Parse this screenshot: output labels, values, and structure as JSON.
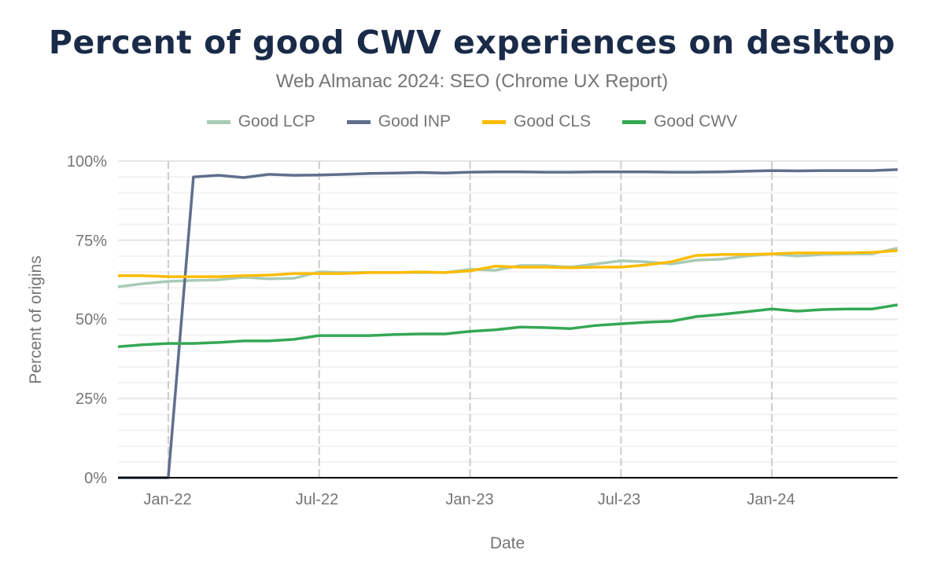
{
  "chart_data": {
    "type": "line",
    "title": "Percent of good CWV experiences on desktop",
    "subtitle": "Web Almanac 2024: SEO (Chrome UX Report)",
    "xlabel": "Date",
    "ylabel": "Percent of origins",
    "ylim": [
      0,
      100
    ],
    "y_ticks": [
      "0%",
      "25%",
      "50%",
      "75%",
      "100%"
    ],
    "x_ticks": [
      "Jan-22",
      "Jul-22",
      "Jan-23",
      "Jul-23",
      "Jan-24"
    ],
    "grid": true,
    "legend_position": "top",
    "x": [
      "2021-11",
      "2021-12",
      "2022-01",
      "2022-02",
      "2022-03",
      "2022-04",
      "2022-05",
      "2022-06",
      "2022-07",
      "2022-08",
      "2022-09",
      "2022-10",
      "2022-11",
      "2022-12",
      "2023-01",
      "2023-02",
      "2023-03",
      "2023-04",
      "2023-05",
      "2023-06",
      "2023-07",
      "2023-08",
      "2023-09",
      "2023-10",
      "2023-11",
      "2023-12",
      "2024-01",
      "2024-02",
      "2024-03",
      "2024-04",
      "2024-05",
      "2024-06"
    ],
    "series": [
      {
        "name": "Good LCP",
        "color": "#a8cbb5",
        "values": [
          60.3,
          61.3,
          62,
          62.3,
          62.5,
          63.3,
          62.8,
          63,
          65,
          64.8,
          64.8,
          64.8,
          64.8,
          64.8,
          65.8,
          65.5,
          67,
          67,
          66.5,
          67.5,
          68.5,
          68.2,
          67.5,
          68.7,
          69,
          70,
          70.7,
          70,
          70.5,
          70.7,
          70.7,
          72.5
        ]
      },
      {
        "name": "Good INP",
        "color": "#5f6f8c",
        "values": [
          0,
          0,
          0,
          95,
          95.5,
          94.8,
          95.8,
          95.5,
          95.6,
          95.8,
          96.1,
          96.2,
          96.4,
          96.2,
          96.5,
          96.6,
          96.6,
          96.5,
          96.5,
          96.6,
          96.6,
          96.6,
          96.5,
          96.5,
          96.6,
          96.8,
          97,
          96.9,
          97,
          97,
          97,
          97.3
        ]
      },
      {
        "name": "Good CLS",
        "color": "#fbbc04",
        "values": [
          63.8,
          63.8,
          63.5,
          63.5,
          63.5,
          63.8,
          64,
          64.5,
          64.5,
          64.5,
          64.8,
          64.8,
          65,
          64.8,
          65.3,
          66.8,
          66.5,
          66.5,
          66.3,
          66.5,
          66.5,
          67.2,
          68.2,
          70.2,
          70.5,
          70.5,
          70.7,
          71,
          71,
          71,
          71.2,
          71.7
        ]
      },
      {
        "name": "Good CWV",
        "color": "#34a853",
        "values": [
          41.4,
          42,
          42.4,
          42.4,
          42.7,
          43.2,
          43.2,
          43.7,
          44.9,
          44.9,
          44.9,
          45.2,
          45.4,
          45.4,
          46.2,
          46.7,
          47.6,
          47.4,
          47.1,
          48.1,
          48.6,
          49.1,
          49.4,
          50.9,
          51.6,
          52.4,
          53.3,
          52.6,
          53.1,
          53.3,
          53.3,
          54.6
        ]
      }
    ]
  }
}
